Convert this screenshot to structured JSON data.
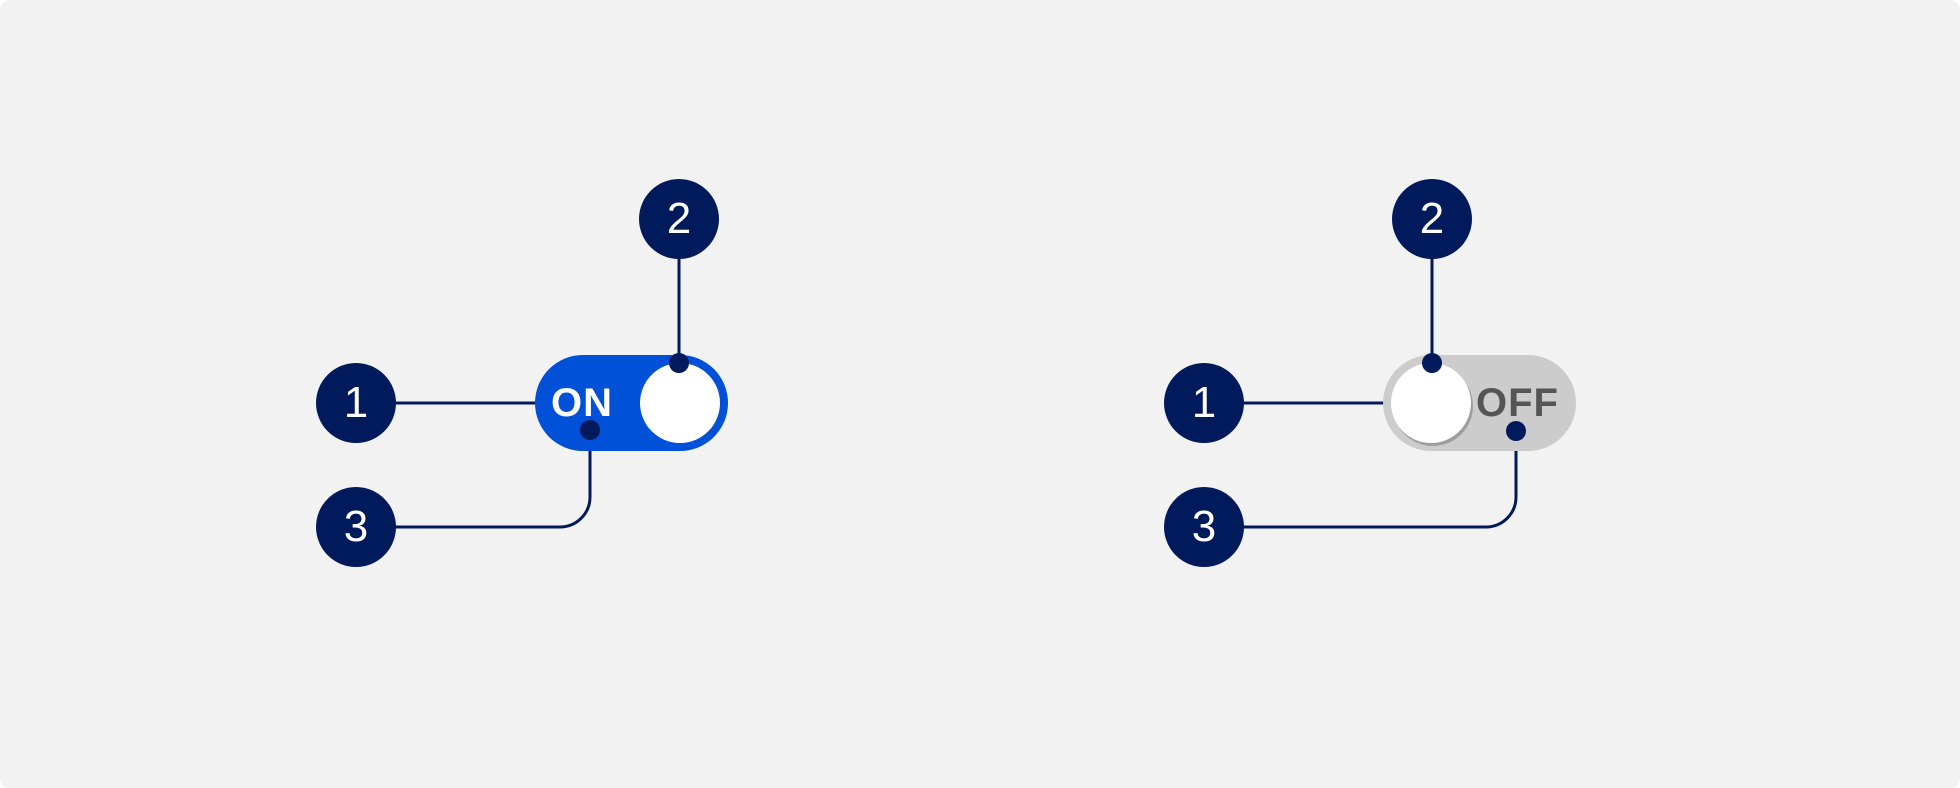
{
  "switches": {
    "on": {
      "label": "ON",
      "state": "on"
    },
    "off": {
      "label": "OFF",
      "state": "off"
    }
  },
  "callouts": {
    "on": [
      "1",
      "2",
      "3"
    ],
    "off": [
      "1",
      "2",
      "3"
    ]
  },
  "colors": {
    "background": "#f2f2f2",
    "on_track": "#0050d8",
    "off_track": "#cccccc",
    "off_label": "#555555",
    "callout": "#001a5c",
    "thumb": "#ffffff"
  }
}
